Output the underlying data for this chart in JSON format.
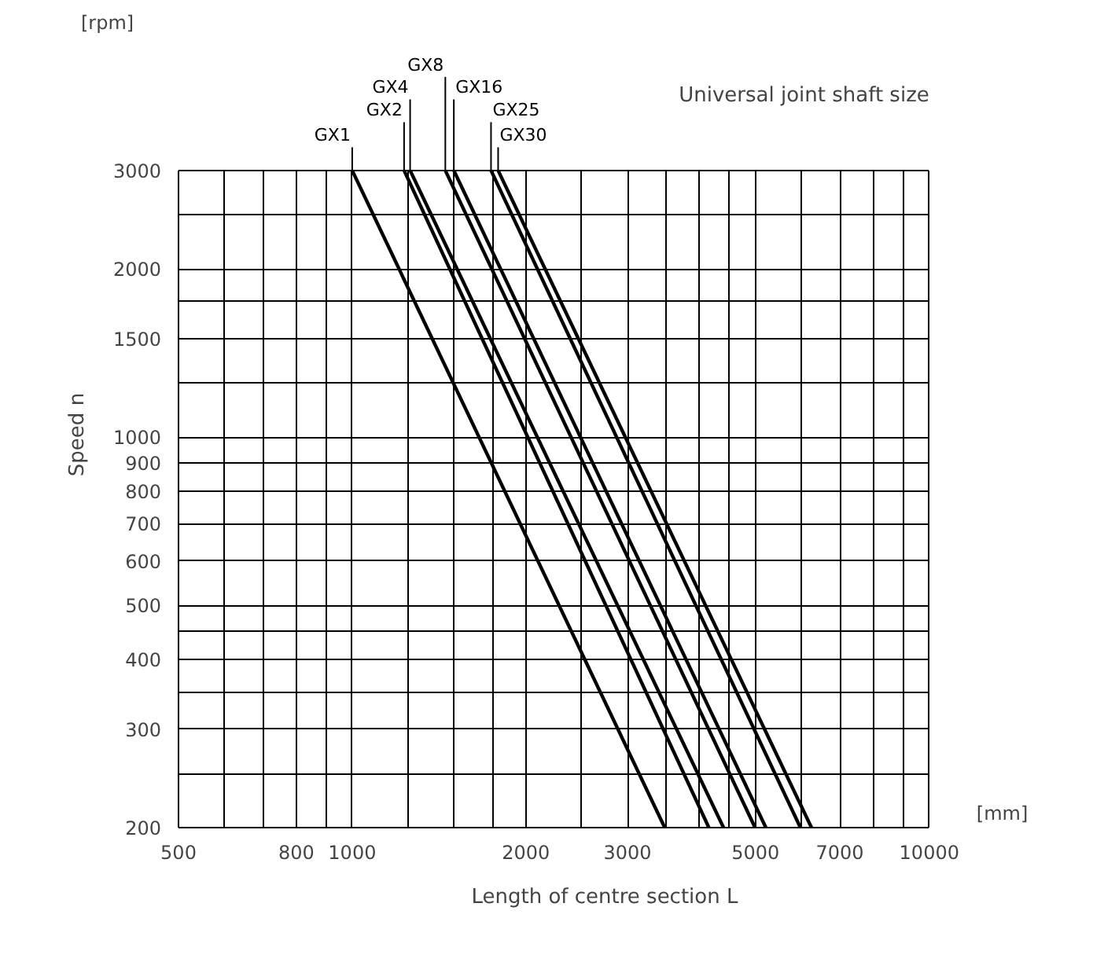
{
  "chart_data": {
    "type": "line",
    "xlabel": "Length of centre section L",
    "ylabel": "Speed n",
    "legend_title": "Universal joint shaft size",
    "annotations": [
      "[rpm]",
      "[mm]"
    ],
    "log": "xy",
    "grid": true,
    "line_style": "solid",
    "xlim": [
      500,
      10000
    ],
    "ylim": [
      200,
      3000
    ],
    "xticks": [
      500,
      {
        "value": 600,
        "label": null
      },
      {
        "value": 700,
        "label": null
      },
      800,
      {
        "value": 900,
        "label": null
      },
      1000,
      {
        "value": 1250,
        "label": null
      },
      {
        "value": 1500,
        "label": null
      },
      {
        "value": 1750,
        "label": null
      },
      2000,
      {
        "value": 2500,
        "label": null
      },
      3000,
      {
        "value": 3500,
        "label": null
      },
      {
        "value": 4000,
        "label": null
      },
      {
        "value": 4500,
        "label": null
      },
      5000,
      {
        "value": 6000,
        "label": null
      },
      7000,
      {
        "value": 8000,
        "label": null
      },
      {
        "value": 9000,
        "label": null
      },
      10000
    ],
    "yticks": [
      200,
      {
        "value": 250,
        "label": null
      },
      300,
      {
        "value": 350,
        "label": null
      },
      400,
      {
        "value": 450,
        "label": null
      },
      500,
      600,
      700,
      800,
      900,
      1000,
      {
        "value": 1250,
        "label": null
      },
      1500,
      {
        "value": 1750,
        "label": null
      },
      2000,
      {
        "value": 2500,
        "label": null
      },
      3000
    ],
    "series": [
      {
        "name": "GX1",
        "color": "#000000",
        "x": [
          1000,
          3480
        ],
        "values": [
          3000,
          200
        ]
      },
      {
        "name": "GX2",
        "color": "#000000",
        "x": [
          1230,
          4150
        ],
        "values": [
          3000,
          200
        ]
      },
      {
        "name": "GX4",
        "color": "#000000",
        "x": [
          1260,
          4400
        ],
        "values": [
          3000,
          200
        ]
      },
      {
        "name": "GX8",
        "color": "#000000",
        "x": [
          1450,
          4990
        ],
        "values": [
          3000,
          200
        ]
      },
      {
        "name": "GX16",
        "color": "#000000",
        "x": [
          1500,
          5210
        ],
        "values": [
          3000,
          200
        ]
      },
      {
        "name": "GX25",
        "color": "#000000",
        "x": [
          1740,
          5980
        ],
        "values": [
          3000,
          200
        ]
      },
      {
        "name": "GX30",
        "color": "#000000",
        "x": [
          1790,
          6250
        ],
        "values": [
          3000,
          200
        ]
      }
    ]
  }
}
